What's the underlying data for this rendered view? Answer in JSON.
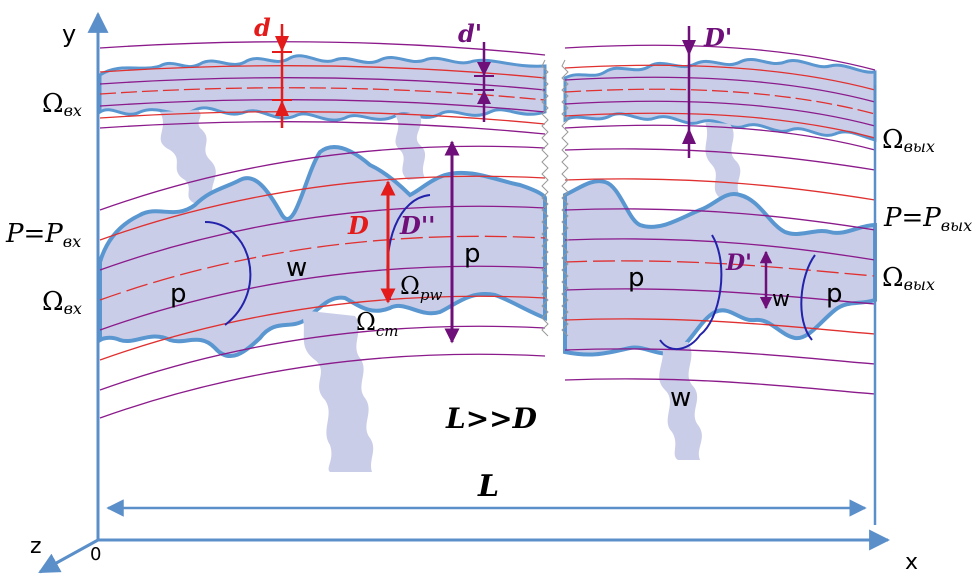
{
  "axes": {
    "x": "x",
    "y": "y",
    "z": "z",
    "origin": "0"
  },
  "labels": {
    "omega_in_top": "Ω",
    "omega_in_top_sub": "вх",
    "omega_in_mid": "Ω",
    "omega_in_mid_sub": "вх",
    "p_in": "P=P",
    "p_in_sub": "вх",
    "omega_out_top": "Ω",
    "omega_out_top_sub": "вых",
    "omega_out_mid": "Ω",
    "omega_out_mid_sub": "вых",
    "p_out": "P=P",
    "p_out_sub": "вых",
    "omega_pw": "Ω",
    "omega_pw_sub": "pw",
    "omega_cm": "Ω",
    "omega_cm_sub": "cm",
    "d_small": "d",
    "d_prime_small": "d'",
    "D_prime_top": "D'",
    "D": "D",
    "D_double_prime": "D''",
    "D_prime_mid": "D'",
    "L": "L",
    "L_relation": "L>>D",
    "p1": "p",
    "w1": "w",
    "p2": "p",
    "p3": "p",
    "w2": "w",
    "p4": "p",
    "w3": "w"
  },
  "colors": {
    "axis": "#5b8fc9",
    "pore_fill": "#c9cde8",
    "pore_edge": "#5a97d0",
    "interface": "#2222aa",
    "line_red": "#e03030",
    "line_purple": "#8b1a8b",
    "arrow_red": "#e41b1b",
    "arrow_purple": "#6f0f7a"
  }
}
